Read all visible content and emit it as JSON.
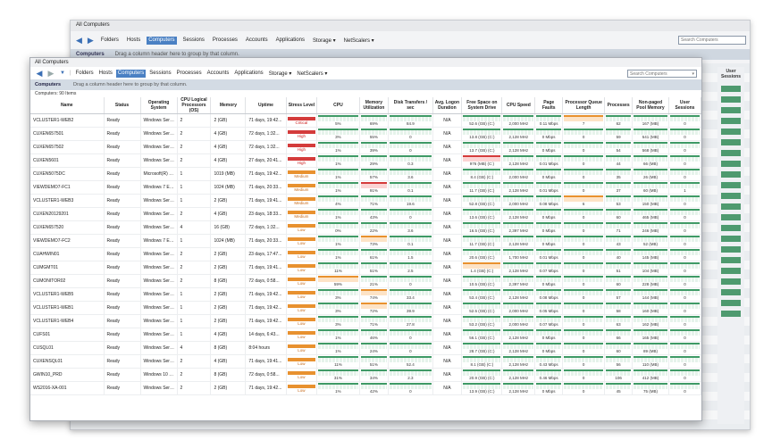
{
  "back_window": {
    "title": "All Computers",
    "nav": [
      "Folders",
      "Hosts",
      "Computers",
      "Sessions",
      "Processes",
      "Accounts",
      "Applications",
      "Storage ▾",
      "NetScalers ▾"
    ],
    "selected": "Computers",
    "search_placeholder": "Search Computers",
    "group_label": "Computers",
    "group_hint": "Drag a column header here to group by that column.",
    "right_column_header": "User Sessions"
  },
  "window": {
    "title": "All Computers",
    "nav": [
      "Folders",
      "Hosts",
      "Computers",
      "Sessions",
      "Processes",
      "Accounts",
      "Applications",
      "Storage ▾",
      "NetScalers ▾"
    ],
    "selected": "Computers",
    "search_placeholder": "Search Computers",
    "group_label": "Computers",
    "group_hint": "Drag a column header here to group by that column.",
    "count_text": "Computers: 90 Items"
  },
  "columns": [
    "Name",
    "Status",
    "Operating System",
    "CPU Logical Processors (OS)",
    "Memory",
    "Uptime",
    "Stress Level",
    "CPU",
    "Memory Utilization",
    "Disk Transfers / sec",
    "Avg. Logon Duration",
    "Free Space on System Drive",
    "CPU Speed",
    "Page Faults",
    "Processor Queue Length",
    "Processes",
    "Non-paged Pool Memory",
    "User Sessions"
  ],
  "rows": [
    {
      "name": "VCLUSTER1-WEB2",
      "status": "Ready",
      "os": "Windows Serve...",
      "cpus": "2",
      "memory": "2 (GB)",
      "uptime": "71 days, 19:42...",
      "stress": "Critical",
      "stress_class": "st-critical",
      "cpu": "5%",
      "mem": "69%",
      "disk": "84.9",
      "logon": "N/A",
      "free": "52.6 (GB) (C:)",
      "speed": "2,000 MHz",
      "pf": "0.11 Mbps",
      "pql": "7",
      "proc": "62",
      "npp": "167 (MB)",
      "sess": "0"
    },
    {
      "name": "CUXEN657501",
      "status": "Ready",
      "os": "Windows Serve...",
      "cpus": "2",
      "memory": "4 (GB)",
      "uptime": "72 days, 1:32...",
      "stress": "High",
      "stress_class": "st-high",
      "cpu": "3%",
      "mem": "55%",
      "disk": "0",
      "logon": "N/A",
      "free": "13.8 (GB) (C:)",
      "speed": "2,128 MHz",
      "pf": "0 Mbps",
      "pql": "0",
      "proc": "59",
      "npp": "541 (MB)",
      "sess": "0"
    },
    {
      "name": "CUXEN657502",
      "status": "Ready",
      "os": "Windows Serve...",
      "cpus": "2",
      "memory": "4 (GB)",
      "uptime": "72 days, 1:32...",
      "stress": "High",
      "stress_class": "st-high",
      "cpu": "1%",
      "mem": "39%",
      "disk": "0",
      "logon": "N/A",
      "free": "13.7 (GB) (C:)",
      "speed": "2,128 MHz",
      "pf": "0 Mbps",
      "pql": "0",
      "proc": "54",
      "npp": "568 (MB)",
      "sess": "0"
    },
    {
      "name": "CUXEN5601",
      "status": "Ready",
      "os": "Windows Serve...",
      "cpus": "2",
      "memory": "4 (GB)",
      "uptime": "27 days, 20:41...",
      "stress": "High",
      "stress_class": "st-high",
      "cpu": "1%",
      "mem": "29%",
      "disk": "0.3",
      "logon": "N/A",
      "free": "976 (MB) (C:)",
      "speed": "2,128 MHz",
      "pf": "0.01 Mbps",
      "pql": "0",
      "proc": "44",
      "npp": "66 (MB)",
      "sess": "0"
    },
    {
      "name": "CUXEN5075DC",
      "status": "Ready",
      "os": "Microsoft(R) W...",
      "cpus": "1",
      "memory": "1019 (MB)",
      "uptime": "71 days, 19:42...",
      "stress": "Medium",
      "stress_class": "st-medium",
      "cpu": "1%",
      "mem": "57%",
      "disk": "3.6",
      "logon": "N/A",
      "free": "8.4 (GB) (C:)",
      "speed": "2,000 MHz",
      "pf": "0 Mbps",
      "pql": "0",
      "proc": "35",
      "npp": "26 (MB)",
      "sess": "0"
    },
    {
      "name": "VIEWDEMO7-FC1",
      "status": "Ready",
      "os": "Windows 7 Ent...",
      "cpus": "1",
      "memory": "1024 (MB)",
      "uptime": "71 days, 20:33...",
      "stress": "Medium",
      "stress_class": "st-medium",
      "cpu": "1%",
      "mem": "91%",
      "disk": "0.1",
      "logon": "N/A",
      "free": "11.7 (GB) (C:)",
      "speed": "2,128 MHz",
      "pf": "0.01 Mbps",
      "pql": "0",
      "proc": "37",
      "npp": "60 (MB)",
      "sess": "1"
    },
    {
      "name": "VCLUSTER1-WEB3",
      "status": "Ready",
      "os": "Windows Serve...",
      "cpus": "1",
      "memory": "2 (GB)",
      "uptime": "71 days, 19:41...",
      "stress": "Medium",
      "stress_class": "st-medium",
      "cpu": "4%",
      "mem": "71%",
      "disk": "19.6",
      "logon": "N/A",
      "free": "52.8 (GB) (C:)",
      "speed": "2,000 MHz",
      "pf": "0.08 Mbps",
      "pql": "6",
      "proc": "53",
      "npp": "150 (MB)",
      "sess": "0"
    },
    {
      "name": "CUXEN20129201",
      "status": "Ready",
      "os": "Windows Serve...",
      "cpus": "2",
      "memory": "4 (GB)",
      "uptime": "23 days, 18:33...",
      "stress": "Medium",
      "stress_class": "st-medium",
      "cpu": "1%",
      "mem": "43%",
      "disk": "0",
      "logon": "N/A",
      "free": "13.6 (GB) (C:)",
      "speed": "2,128 MHz",
      "pf": "0 Mbps",
      "pql": "0",
      "proc": "60",
      "npp": "465 (MB)",
      "sess": "0"
    },
    {
      "name": "CUXEN657520",
      "status": "Ready",
      "os": "Windows Serve...",
      "cpus": "4",
      "memory": "16 (GB)",
      "uptime": "72 days, 1:32...",
      "stress": "Low",
      "stress_class": "st-low",
      "cpu": "0%",
      "mem": "22%",
      "disk": "3.6",
      "logon": "N/A",
      "free": "16.5 (GB) (C:)",
      "speed": "2,397 MHz",
      "pf": "0 Mbps",
      "pql": "0",
      "proc": "71",
      "npp": "246 (MB)",
      "sess": "0"
    },
    {
      "name": "VIEWDEMO7-FC2",
      "status": "Ready",
      "os": "Windows 7 Ent...",
      "cpus": "1",
      "memory": "1024 (MB)",
      "uptime": "71 days, 20:33...",
      "stress": "Low",
      "stress_class": "st-low",
      "cpu": "1%",
      "mem": "73%",
      "disk": "0.1",
      "logon": "N/A",
      "free": "11.7 (GB) (C:)",
      "speed": "2,128 MHz",
      "pf": "0 Mbps",
      "pql": "0",
      "proc": "43",
      "npp": "52 (MB)",
      "sess": "0"
    },
    {
      "name": "CUAHWIN01",
      "status": "Ready",
      "os": "Windows Serve...",
      "cpus": "2",
      "memory": "2 (GB)",
      "uptime": "23 days, 17:47...",
      "stress": "Low",
      "stress_class": "st-low",
      "cpu": "1%",
      "mem": "61%",
      "disk": "1.5",
      "logon": "N/A",
      "free": "20.6 (GB) (C:)",
      "speed": "1,700 MHz",
      "pf": "0.01 Mbps",
      "pql": "0",
      "proc": "40",
      "npp": "145 (MB)",
      "sess": "0"
    },
    {
      "name": "CUMGMT01",
      "status": "Ready",
      "os": "Windows Serve...",
      "cpus": "2",
      "memory": "2 (GB)",
      "uptime": "71 days, 19:41...",
      "stress": "Low",
      "stress_class": "st-low",
      "cpu": "11%",
      "mem": "51%",
      "disk": "2.5",
      "logon": "N/A",
      "free": "1.4 (GB) (C:)",
      "speed": "2,128 MHz",
      "pf": "0.07 Mbps",
      "pql": "0",
      "proc": "51",
      "npp": "104 (MB)",
      "sess": "0"
    },
    {
      "name": "CUMONITOR02",
      "status": "Ready",
      "os": "Windows Serve...",
      "cpus": "2",
      "memory": "8 (GB)",
      "uptime": "72 days, 0:58...",
      "stress": "Low",
      "stress_class": "st-low",
      "cpu": "59%",
      "mem": "21%",
      "disk": "0",
      "logon": "N/A",
      "free": "10.5 (GB) (C:)",
      "speed": "2,397 MHz",
      "pf": "0 Mbps",
      "pql": "0",
      "proc": "60",
      "npp": "228 (MB)",
      "sess": "0"
    },
    {
      "name": "VCLUSTER1-WEB5",
      "status": "Ready",
      "os": "Windows Serve...",
      "cpus": "1",
      "memory": "2 (GB)",
      "uptime": "71 days, 19:42...",
      "stress": "Low",
      "stress_class": "st-low",
      "cpu": "3%",
      "mem": "74%",
      "disk": "33.4",
      "logon": "N/A",
      "free": "53.4 (GB) (C:)",
      "speed": "2,128 MHz",
      "pf": "0.08 Mbps",
      "pql": "0",
      "proc": "57",
      "npp": "144 (MB)",
      "sess": "0"
    },
    {
      "name": "VCLUSTER1-WEB1",
      "status": "Ready",
      "os": "Windows Serve...",
      "cpus": "1",
      "memory": "2 (GB)",
      "uptime": "71 days, 19:42...",
      "stress": "Low",
      "stress_class": "st-low",
      "cpu": "3%",
      "mem": "72%",
      "disk": "39.9",
      "logon": "N/A",
      "free": "52.5 (GB) (C:)",
      "speed": "2,000 MHz",
      "pf": "0.05 Mbps",
      "pql": "0",
      "proc": "58",
      "npp": "160 (MB)",
      "sess": "0"
    },
    {
      "name": "VCLUSTER1-WEB4",
      "status": "Ready",
      "os": "Windows Serve...",
      "cpus": "1",
      "memory": "2 (GB)",
      "uptime": "71 days, 19:42...",
      "stress": "Low",
      "stress_class": "st-low",
      "cpu": "3%",
      "mem": "71%",
      "disk": "27.8",
      "logon": "N/A",
      "free": "53.2 (GB) (C:)",
      "speed": "2,000 MHz",
      "pf": "0.07 Mbps",
      "pql": "0",
      "proc": "63",
      "npp": "162 (MB)",
      "sess": "0"
    },
    {
      "name": "CUFS01",
      "status": "Ready",
      "os": "Windows Serve...",
      "cpus": "1",
      "memory": "4 (GB)",
      "uptime": "14 days, 6:43...",
      "stress": "Low",
      "stress_class": "st-low",
      "cpu": "1%",
      "mem": "46%",
      "disk": "0",
      "logon": "N/A",
      "free": "56.1 (GB) (C:)",
      "speed": "2,128 MHz",
      "pf": "0 Mbps",
      "pql": "0",
      "proc": "66",
      "npp": "165 (MB)",
      "sess": "0"
    },
    {
      "name": "CUSQL01",
      "status": "Ready",
      "os": "Windows Serve...",
      "cpus": "4",
      "memory": "8 (GB)",
      "uptime": "8:04 hours",
      "stress": "Low",
      "stress_class": "st-low",
      "cpu": "1%",
      "mem": "24%",
      "disk": "0",
      "logon": "N/A",
      "free": "28.7 (GB) (C:)",
      "speed": "2,128 MHz",
      "pf": "0 Mbps",
      "pql": "0",
      "proc": "60",
      "npp": "89 (MB)",
      "sess": "0"
    },
    {
      "name": "CUXENSQL01",
      "status": "Ready",
      "os": "Windows Serve...",
      "cpus": "2",
      "memory": "4 (GB)",
      "uptime": "71 days, 19:41...",
      "stress": "Low",
      "stress_class": "st-low",
      "cpu": "11%",
      "mem": "51%",
      "disk": "52.4",
      "logon": "N/A",
      "free": "8.1 (GB) (C:)",
      "speed": "2,128 MHz",
      "pf": "0.43 Mbps",
      "pql": "0",
      "proc": "56",
      "npp": "110 (MB)",
      "sess": "0"
    },
    {
      "name": "GWIN10_PRD",
      "status": "Ready",
      "os": "Windows 10 Pro",
      "cpus": "2",
      "memory": "8 (GB)",
      "uptime": "72 days, 0:58...",
      "stress": "Low",
      "stress_class": "st-low",
      "cpu": "31%",
      "mem": "34%",
      "disk": "2.3",
      "logon": "N/A",
      "free": "20.9 (GB) (C:)",
      "speed": "2,128 MHz",
      "pf": "0.46 Mbps",
      "pql": "0",
      "proc": "106",
      "npp": "412 (MB)",
      "sess": "0"
    },
    {
      "name": "WS2016-XA-001",
      "status": "Ready",
      "os": "Windows Serve...",
      "cpus": "2",
      "memory": "2 (GB)",
      "uptime": "71 days, 19:42...",
      "stress": "Low",
      "stress_class": "st-low",
      "cpu": "1%",
      "mem": "42%",
      "disk": "0",
      "logon": "N/A",
      "free": "13.9 (GB) (C:)",
      "speed": "2,128 MHz",
      "pf": "0 Mbps",
      "pql": "0",
      "proc": "45",
      "npp": "75 (MB)",
      "sess": "0"
    }
  ]
}
